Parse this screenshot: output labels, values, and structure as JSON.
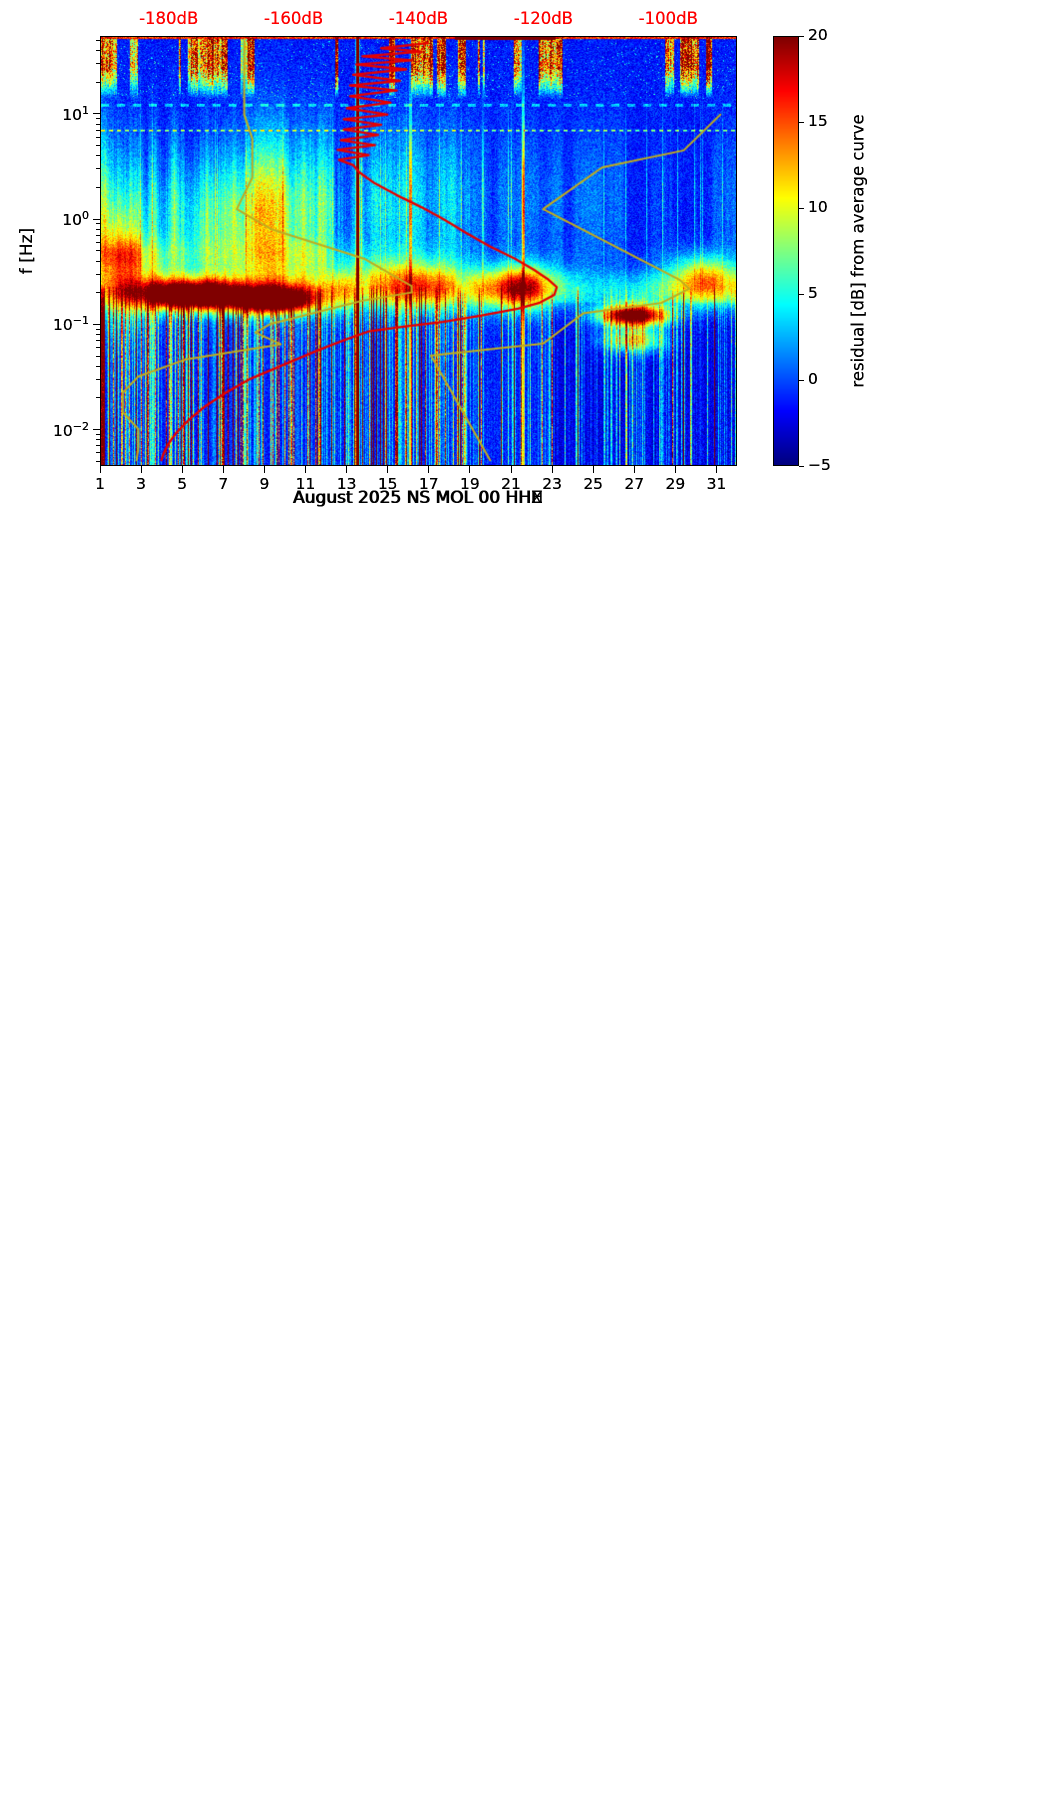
{
  "colors": {
    "background": "#ffffff",
    "axis_text": "#000000",
    "top_axis_text": "#ff0000",
    "avg_curve": "#e60000",
    "model_curve": "#c0ac1e",
    "heat_low": "#00007f",
    "heat_high": "#7f0000"
  },
  "y_axis": {
    "label": "f [Hz]",
    "scale": "log",
    "range_hz": [
      0.0045,
      55
    ],
    "major_tick_exponents": [
      1,
      0,
      -1,
      -2
    ],
    "major_tick_labels": [
      "10¹",
      "10⁰",
      "10⁻¹",
      "10⁻²"
    ]
  },
  "x_axis": {
    "tick_days": [
      1,
      3,
      5,
      7,
      9,
      11,
      13,
      15,
      17,
      19,
      21,
      23,
      25,
      27,
      29,
      31
    ],
    "tick_labels": [
      "1",
      "3",
      "5",
      "7",
      "9",
      "11",
      "13",
      "15",
      "17",
      "19",
      "21",
      "23",
      "25",
      "27",
      "29",
      "31"
    ],
    "range_days": [
      1,
      32
    ]
  },
  "top_axis": {
    "tick_labels": [
      "-180dB",
      "-160dB",
      "-140dB",
      "-120dB",
      "-100dB"
    ],
    "tick_values_db": [
      -180,
      -160,
      -140,
      -120,
      -100
    ],
    "range_db": [
      -191,
      -89
    ]
  },
  "colorbar": {
    "label": "residual [dB] from average curve",
    "tick_labels": [
      "20",
      "15",
      "10",
      "5",
      "0",
      "−5"
    ],
    "tick_values": [
      20,
      15,
      10,
      5,
      0,
      -5
    ],
    "vmin": -5,
    "vmax": 20,
    "colormap": "jet"
  },
  "panels": [
    {
      "channel": "HHE",
      "xlabel": "August 2025 NS MOL 00 HHE"
    },
    {
      "channel": "HHN",
      "xlabel": "August 2025 NS MOL 00 HHN"
    },
    {
      "channel": "HHZ",
      "xlabel": "August 2025 NS MOL 00 HHZ"
    }
  ],
  "chart_data": {
    "type": "heatmap",
    "description": "Three day-by-day noise spectrogram panels (residual power in dB versus an average curve) for seismic station NS MOL 00, components HHE, HHN, HHZ, August 2025. Overlaid red curve: station average PSD read on the red top dB axis. Overlaid olive curves: low/high reference noise model curves on the same top dB axis.",
    "x": {
      "label": "day of August 2025",
      "range": [
        1,
        32
      ]
    },
    "y": {
      "label": "f [Hz]",
      "scale": "log",
      "range_hz": [
        0.0045,
        55
      ]
    },
    "z": {
      "label": "residual [dB] from average curve",
      "range": [
        -5,
        20
      ],
      "colormap": "jet"
    },
    "overlay_curves": {
      "average_psd_db_vs_hz_per_panel": [
        [
          [
            48,
            -138.5
          ],
          [
            43,
            -146
          ],
          [
            40,
            -139.5
          ],
          [
            36,
            -149
          ],
          [
            33,
            -141
          ],
          [
            30,
            -150
          ],
          [
            27,
            -142
          ],
          [
            24,
            -150.5
          ],
          [
            21,
            -143
          ],
          [
            19,
            -151
          ],
          [
            17,
            -143.5
          ],
          [
            15,
            -151
          ],
          [
            13,
            -144.5
          ],
          [
            11.5,
            -151.5
          ],
          [
            10,
            -145
          ],
          [
            9,
            -152
          ],
          [
            8,
            -146
          ],
          [
            7.2,
            -152
          ],
          [
            6.4,
            -146.5
          ],
          [
            5.7,
            -152.5
          ],
          [
            5.1,
            -147
          ],
          [
            4.6,
            -153
          ],
          [
            4.1,
            -148
          ],
          [
            3.7,
            -152.8
          ],
          [
            3.3,
            -150.5
          ],
          [
            2.8,
            -149.5
          ],
          [
            2.2,
            -147
          ],
          [
            1.7,
            -143.5
          ],
          [
            1.3,
            -139.5
          ],
          [
            1.0,
            -136
          ],
          [
            0.75,
            -132.5
          ],
          [
            0.55,
            -128.5
          ],
          [
            0.42,
            -124.5
          ],
          [
            0.33,
            -121.5
          ],
          [
            0.27,
            -119.3
          ],
          [
            0.225,
            -117.8
          ],
          [
            0.19,
            -118.2
          ],
          [
            0.16,
            -120.5
          ],
          [
            0.14,
            -124
          ],
          [
            0.12,
            -130
          ],
          [
            0.105,
            -136
          ],
          [
            0.095,
            -141
          ],
          [
            0.085,
            -144.5
          ],
          [
            0.07,
            -146.5
          ],
          [
            0.055,
            -147.5
          ],
          [
            0.04,
            -148.3
          ],
          [
            0.03,
            -148.8
          ],
          [
            0.02,
            -148.5
          ],
          [
            0.015,
            -147.8
          ],
          [
            0.011,
            -146.8
          ],
          [
            0.008,
            -147.5
          ],
          [
            0.0062,
            -146.5
          ],
          [
            0.005,
            -147.2
          ]
        ],
        [
          [
            48,
            -138.5
          ],
          [
            43,
            -146
          ],
          [
            40,
            -139.5
          ],
          [
            36,
            -149
          ],
          [
            33,
            -141
          ],
          [
            30,
            -150
          ],
          [
            27,
            -142
          ],
          [
            24,
            -150.5
          ],
          [
            21,
            -143
          ],
          [
            19,
            -151
          ],
          [
            17,
            -143.5
          ],
          [
            15,
            -151
          ],
          [
            13,
            -144.5
          ],
          [
            11.5,
            -151.5
          ],
          [
            10,
            -145
          ],
          [
            9,
            -152
          ],
          [
            8,
            -146
          ],
          [
            7.2,
            -152
          ],
          [
            6.4,
            -146.5
          ],
          [
            5.7,
            -152.5
          ],
          [
            5.1,
            -147
          ],
          [
            4.6,
            -153
          ],
          [
            4.1,
            -148
          ],
          [
            3.7,
            -152.8
          ],
          [
            3.3,
            -150.5
          ],
          [
            2.8,
            -149.5
          ],
          [
            2.2,
            -147
          ],
          [
            1.7,
            -143.5
          ],
          [
            1.3,
            -139.5
          ],
          [
            1.0,
            -136
          ],
          [
            0.75,
            -132.5
          ],
          [
            0.55,
            -128.5
          ],
          [
            0.42,
            -124.5
          ],
          [
            0.33,
            -121.5
          ],
          [
            0.27,
            -119.3
          ],
          [
            0.225,
            -117.5
          ],
          [
            0.19,
            -118.2
          ],
          [
            0.16,
            -120.5
          ],
          [
            0.14,
            -124
          ],
          [
            0.12,
            -130
          ],
          [
            0.105,
            -136
          ],
          [
            0.095,
            -141
          ],
          [
            0.085,
            -144.5
          ],
          [
            0.07,
            -146.5
          ],
          [
            0.055,
            -147.5
          ],
          [
            0.04,
            -148.3
          ],
          [
            0.03,
            -148.8
          ],
          [
            0.02,
            -148.5
          ],
          [
            0.015,
            -147.8
          ],
          [
            0.011,
            -146.8
          ],
          [
            0.008,
            -147.5
          ],
          [
            0.0062,
            -146.5
          ],
          [
            0.005,
            -147.2
          ]
        ],
        [
          [
            48,
            -138.5
          ],
          [
            43,
            -146
          ],
          [
            40,
            -139.5
          ],
          [
            36,
            -149
          ],
          [
            33,
            -141
          ],
          [
            30,
            -150
          ],
          [
            27,
            -142
          ],
          [
            24,
            -150.5
          ],
          [
            21,
            -143
          ],
          [
            19,
            -151
          ],
          [
            17,
            -143.5
          ],
          [
            15,
            -151
          ],
          [
            13,
            -144.5
          ],
          [
            11.5,
            -151.5
          ],
          [
            10,
            -145
          ],
          [
            9,
            -152
          ],
          [
            8,
            -146
          ],
          [
            7.2,
            -152
          ],
          [
            6.4,
            -146.5
          ],
          [
            5.7,
            -152.5
          ],
          [
            5.1,
            -147
          ],
          [
            4.6,
            -153
          ],
          [
            4.1,
            -148
          ],
          [
            3.7,
            -152.8
          ],
          [
            3.3,
            -150.5
          ],
          [
            2.8,
            -149.5
          ],
          [
            2.2,
            -147
          ],
          [
            1.7,
            -143.5
          ],
          [
            1.3,
            -139.5
          ],
          [
            1.0,
            -136
          ],
          [
            0.75,
            -132.5
          ],
          [
            0.55,
            -128.5
          ],
          [
            0.42,
            -124.5
          ],
          [
            0.33,
            -121.5
          ],
          [
            0.27,
            -119.3
          ],
          [
            0.225,
            -117.8
          ],
          [
            0.19,
            -118.2
          ],
          [
            0.16,
            -120.5
          ],
          [
            0.14,
            -124
          ],
          [
            0.12,
            -130
          ],
          [
            0.105,
            -136
          ],
          [
            0.095,
            -142
          ],
          [
            0.085,
            -148
          ],
          [
            0.07,
            -152
          ],
          [
            0.055,
            -156.5
          ],
          [
            0.04,
            -162
          ],
          [
            0.03,
            -167
          ],
          [
            0.022,
            -171
          ],
          [
            0.016,
            -174.5
          ],
          [
            0.012,
            -177
          ],
          [
            0.009,
            -179
          ],
          [
            0.007,
            -180.3
          ],
          [
            0.0057,
            -181
          ],
          [
            0.005,
            -181.3
          ]
        ]
      ],
      "noise_models": {
        "nlnm": [
          [
            50,
            -168
          ],
          [
            10,
            -168
          ],
          [
            5.88,
            -166.7
          ],
          [
            2.5,
            -166.7
          ],
          [
            1.25,
            -169.2
          ],
          [
            0.806,
            -163.7
          ],
          [
            0.417,
            -148.6
          ],
          [
            0.23,
            -141.1
          ],
          [
            0.2,
            -141.1
          ],
          [
            0.167,
            -149
          ],
          [
            0.1,
            -163.8
          ],
          [
            0.083,
            -166.2
          ],
          [
            0.064,
            -162.1
          ],
          [
            0.0457,
            -177.5
          ],
          [
            0.0316,
            -185
          ],
          [
            0.0222,
            -187.5
          ],
          [
            0.0143,
            -187.5
          ],
          [
            0.0099,
            -185
          ],
          [
            0.0065,
            -185
          ],
          [
            0.005,
            -185.3
          ]
        ],
        "nhnm": [
          [
            10,
            -91.5
          ],
          [
            4.55,
            -97.4
          ],
          [
            3.13,
            -110.5
          ],
          [
            1.25,
            -120
          ],
          [
            0.263,
            -98
          ],
          [
            0.217,
            -96.5
          ],
          [
            0.159,
            -101
          ],
          [
            0.127,
            -113.5
          ],
          [
            0.065,
            -120
          ],
          [
            0.05,
            -138
          ],
          [
            0.005,
            -128.5
          ]
        ]
      }
    },
    "features": {
      "artifact_day": 13.5,
      "dotted_lines_hz": [
        7,
        12.3
      ],
      "bright_days": [
        16.1,
        21.6
      ],
      "microseism_band": {
        "f_center_hz": 0.21,
        "sigma_log10": 0.13,
        "amp_by_day": [
          [
            1,
            6
          ],
          [
            2.5,
            8
          ],
          [
            4,
            10
          ],
          [
            6,
            10
          ],
          [
            8,
            10
          ],
          [
            10,
            9
          ],
          [
            12,
            8
          ],
          [
            14,
            8
          ],
          [
            16,
            9
          ],
          [
            18,
            8
          ],
          [
            20,
            8
          ],
          [
            21.8,
            10
          ],
          [
            23,
            4
          ],
          [
            25,
            3
          ],
          [
            26.5,
            5
          ],
          [
            28,
            5
          ],
          [
            29.5,
            7
          ],
          [
            31,
            8
          ],
          [
            32,
            8
          ]
        ]
      },
      "hot_regions_per_panel": [
        [
          {
            "d": 5.3,
            "f": 0.19,
            "amp": 24,
            "sd": 1.5,
            "sf": 0.09
          },
          {
            "d": 9.6,
            "f": 0.17,
            "amp": 22,
            "sd": 1.4,
            "sf": 0.08
          },
          {
            "d": 7.5,
            "f": 0.9,
            "amp": 6,
            "sd": 3.0,
            "sf": 0.4
          },
          {
            "d": 2.0,
            "f": 0.4,
            "amp": 8,
            "sd": 0.9,
            "sf": 0.4
          },
          {
            "d": 16.0,
            "f": 0.28,
            "amp": 7,
            "sd": 2.2,
            "sf": 0.16
          },
          {
            "d": 21.8,
            "f": 0.24,
            "amp": 9,
            "sd": 1.2,
            "sf": 0.14
          },
          {
            "d": 27.4,
            "f": 0.125,
            "amp": 27,
            "sd": 1.1,
            "sf": 0.07
          },
          {
            "d": 27.4,
            "f": 0.066,
            "amp": 13,
            "sd": 1.0,
            "sf": 0.08
          },
          {
            "d": 30.4,
            "f": 0.3,
            "amp": 9,
            "sd": 1.2,
            "sf": 0.14
          }
        ],
        [
          {
            "d": 5.0,
            "f": 0.19,
            "amp": 25,
            "sd": 1.5,
            "sf": 0.09
          },
          {
            "d": 9.9,
            "f": 0.17,
            "amp": 23,
            "sd": 1.5,
            "sf": 0.08
          },
          {
            "d": 7.5,
            "f": 0.9,
            "amp": 6,
            "sd": 3.0,
            "sf": 0.4
          },
          {
            "d": 2.0,
            "f": 0.4,
            "amp": 8,
            "sd": 0.9,
            "sf": 0.4
          },
          {
            "d": 16.0,
            "f": 0.28,
            "amp": 7,
            "sd": 2.2,
            "sf": 0.16
          },
          {
            "d": 21.8,
            "f": 0.24,
            "amp": 9,
            "sd": 1.2,
            "sf": 0.14
          },
          {
            "d": 27.2,
            "f": 0.13,
            "amp": 27,
            "sd": 1.1,
            "sf": 0.07
          },
          {
            "d": 27.2,
            "f": 0.068,
            "amp": 12,
            "sd": 1.0,
            "sf": 0.08
          },
          {
            "d": 30.4,
            "f": 0.3,
            "amp": 9,
            "sd": 1.2,
            "sf": 0.14
          }
        ],
        [
          {
            "d": 5.6,
            "f": 0.185,
            "amp": 23,
            "sd": 1.6,
            "sf": 0.09
          },
          {
            "d": 9.4,
            "f": 0.165,
            "amp": 21,
            "sd": 1.4,
            "sf": 0.08
          },
          {
            "d": 7.5,
            "f": 0.9,
            "amp": 6,
            "sd": 3.0,
            "sf": 0.4
          },
          {
            "d": 2.0,
            "f": 0.4,
            "amp": 8,
            "sd": 0.9,
            "sf": 0.4
          },
          {
            "d": 16.0,
            "f": 0.28,
            "amp": 7,
            "sd": 2.2,
            "sf": 0.16
          },
          {
            "d": 21.8,
            "f": 0.24,
            "amp": 9,
            "sd": 1.2,
            "sf": 0.14
          },
          {
            "d": 27.0,
            "f": 0.12,
            "amp": 26,
            "sd": 1.1,
            "sf": 0.07
          },
          {
            "d": 27.0,
            "f": 0.07,
            "amp": 12,
            "sd": 1.0,
            "sf": 0.08
          },
          {
            "d": 30.4,
            "f": 0.3,
            "amp": 9,
            "sd": 1.2,
            "sf": 0.14
          }
        ]
      ]
    }
  }
}
